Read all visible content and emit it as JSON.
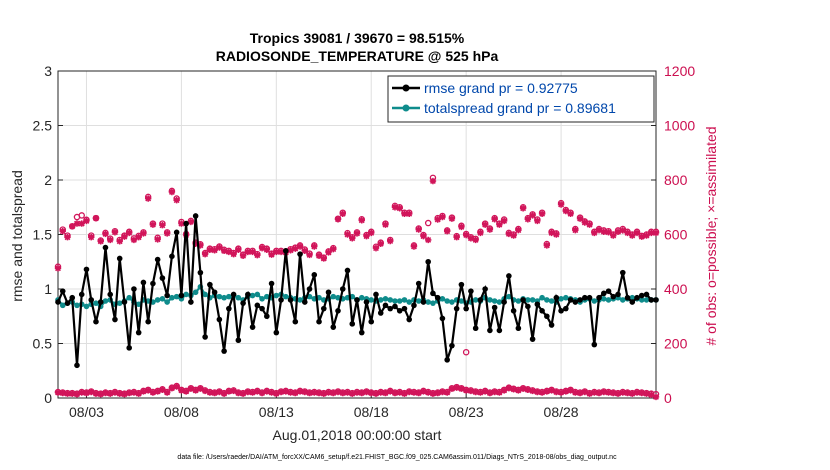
{
  "chart_data": {
    "type": "line",
    "title_line1": "Tropics 39081 / 39670 = 98.515%",
    "title_line2": "RADIOSONDE_TEMPERATURE @ 525 hPa",
    "xlabel": "Aug.01,2018 00:00:00 start",
    "ylabel_left": "rmse and totalspread",
    "ylabel_right": "# of obs: o=possible; ×=assimilated",
    "xlim": [
      1.5,
      33.0
    ],
    "ylim_left": [
      0,
      3
    ],
    "ylim_right": [
      0,
      1200
    ],
    "grid": true,
    "legend_position": "top-right",
    "xticks": [
      {
        "x": 3,
        "label": "08/03"
      },
      {
        "x": 8,
        "label": "08/08"
      },
      {
        "x": 13,
        "label": "08/13"
      },
      {
        "x": 18,
        "label": "08/18"
      },
      {
        "x": 23,
        "label": "08/23"
      },
      {
        "x": 28,
        "label": "08/28"
      }
    ],
    "yticks_left": [
      "0",
      "0.5",
      "1",
      "1.5",
      "2",
      "2.5",
      "3"
    ],
    "yticks_right": [
      "0",
      "200",
      "400",
      "600",
      "800",
      "1000",
      "1200"
    ],
    "colors": {
      "rmse": "#000000",
      "spread": "#0f8c8c",
      "obs": "#d1155a",
      "legend_text": "#0047ab"
    },
    "x": [
      1.5,
      1.75,
      2.0,
      2.25,
      2.5,
      2.75,
      3.0,
      3.25,
      3.5,
      3.75,
      4.0,
      4.25,
      4.5,
      4.75,
      5.0,
      5.25,
      5.5,
      5.75,
      6.0,
      6.25,
      6.5,
      6.75,
      7.0,
      7.25,
      7.5,
      7.75,
      8.0,
      8.25,
      8.5,
      8.75,
      9.0,
      9.25,
      9.5,
      9.75,
      10.0,
      10.25,
      10.5,
      10.75,
      11.0,
      11.25,
      11.5,
      11.75,
      12.0,
      12.25,
      12.5,
      12.75,
      13.0,
      13.25,
      13.5,
      13.75,
      14.0,
      14.25,
      14.5,
      14.75,
      15.0,
      15.25,
      15.5,
      15.75,
      16.0,
      16.25,
      16.5,
      16.75,
      17.0,
      17.25,
      17.5,
      17.75,
      18.0,
      18.25,
      18.5,
      18.75,
      19.0,
      19.25,
      19.5,
      19.75,
      20.0,
      20.25,
      20.5,
      20.75,
      21.0,
      21.25,
      21.5,
      21.75,
      22.0,
      22.25,
      22.5,
      22.75,
      23.0,
      23.25,
      23.5,
      23.75,
      24.0,
      24.25,
      24.5,
      24.75,
      25.0,
      25.25,
      25.5,
      25.75,
      26.0,
      26.25,
      26.5,
      26.75,
      27.0,
      27.25,
      27.5,
      27.75,
      28.0,
      28.25,
      28.5,
      28.75,
      29.0,
      29.25,
      29.5,
      29.75,
      30.0,
      30.25,
      30.5,
      30.75,
      31.0,
      31.25,
      31.5,
      31.75,
      32.0,
      32.25,
      32.5,
      32.75,
      33.0
    ],
    "series": [
      {
        "name": "rmse",
        "legend_label": "rmse grand pr = 0.92775",
        "axis": "left",
        "values": [
          0.88,
          0.98,
          0.87,
          0.92,
          0.3,
          0.95,
          1.18,
          0.9,
          0.7,
          0.88,
          1.38,
          0.95,
          0.72,
          1.28,
          0.88,
          0.46,
          1.0,
          0.6,
          1.06,
          0.7,
          1.05,
          1.27,
          1.1,
          0.94,
          1.3,
          1.52,
          0.94,
          1.6,
          0.88,
          1.67,
          1.15,
          0.56,
          1.04,
          0.97,
          0.72,
          0.43,
          0.82,
          0.95,
          0.53,
          0.87,
          0.95,
          0.65,
          0.85,
          0.82,
          0.75,
          1.05,
          0.6,
          0.9,
          1.35,
          0.9,
          0.7,
          1.32,
          0.88,
          1.0,
          1.13,
          0.7,
          0.82,
          0.97,
          0.65,
          0.8,
          1.0,
          1.17,
          0.68,
          0.9,
          0.6,
          0.88,
          0.7,
          0.95,
          0.78,
          0.85,
          0.82,
          0.84,
          0.8,
          0.82,
          0.72,
          0.85,
          1.05,
          0.88,
          1.25,
          0.96,
          0.92,
          0.73,
          0.35,
          0.48,
          0.82,
          1.04,
          0.82,
          0.98,
          0.64,
          0.9,
          1.0,
          0.62,
          0.83,
          0.62,
          0.88,
          1.12,
          0.8,
          0.64,
          0.9,
          0.84,
          0.54,
          0.86,
          0.8,
          0.75,
          0.67,
          0.92,
          0.8,
          0.82,
          0.9,
          0.88,
          0.9,
          0.92,
          0.92,
          0.49,
          0.92,
          0.96,
          0.98,
          0.93,
          0.95,
          1.15,
          0.92,
          0.88,
          0.92,
          0.94,
          0.95,
          0.9,
          0.9
        ]
      },
      {
        "name": "totalspread",
        "legend_label": "totalspread grand pr = 0.89681",
        "axis": "left",
        "values": [
          0.9,
          0.85,
          0.87,
          0.88,
          0.85,
          0.86,
          0.84,
          0.86,
          0.87,
          0.84,
          0.89,
          0.9,
          0.86,
          0.87,
          0.89,
          0.92,
          0.88,
          0.86,
          0.9,
          0.89,
          0.88,
          0.9,
          0.91,
          0.88,
          0.92,
          0.93,
          0.91,
          0.95,
          0.94,
          0.97,
          1.02,
          0.95,
          0.92,
          0.94,
          0.93,
          0.92,
          0.93,
          0.94,
          0.92,
          0.9,
          0.93,
          0.94,
          0.95,
          0.91,
          0.93,
          0.92,
          0.94,
          0.95,
          0.93,
          0.92,
          0.91,
          0.9,
          0.92,
          0.93,
          0.91,
          0.92,
          0.9,
          0.91,
          0.93,
          0.92,
          0.91,
          0.92,
          0.93,
          0.9,
          0.92,
          0.91,
          0.9,
          0.89,
          0.9,
          0.91,
          0.9,
          0.89,
          0.89,
          0.9,
          0.88,
          0.9,
          0.89,
          0.9,
          0.88,
          0.87,
          0.89,
          0.91,
          0.89,
          0.88,
          0.9,
          0.89,
          0.87,
          0.88,
          0.9,
          0.89,
          0.92,
          0.9,
          0.89,
          0.88,
          0.91,
          0.93,
          0.9,
          0.89,
          0.91,
          0.9,
          0.9,
          0.89,
          0.92,
          0.9,
          0.89,
          0.88,
          0.91,
          0.92,
          0.91,
          0.9,
          0.88,
          0.9,
          0.91,
          0.89,
          0.9,
          0.91,
          0.9,
          0.91,
          0.92,
          0.9,
          0.91,
          0.92,
          0.91,
          0.9,
          0.9,
          0.9,
          0.9
        ]
      },
      {
        "name": "obs_possible",
        "axis": "right",
        "marker": "circle",
        "values": [
          482,
          618,
          596,
          630,
          664,
          670,
          654,
          596,
          660,
          578,
          606,
          585,
          612,
          580,
          596,
          610,
          586,
          595,
          608,
          738,
          640,
          588,
          640,
          608,
          760,
          732,
          646,
          602,
          650,
          570,
          564,
          532,
          548,
          546,
          556,
          544,
          540,
          532,
          548,
          526,
          540,
          540,
          528,
          554,
          548,
          530,
          540,
          540,
          538,
          546,
          552,
          560,
          545,
          530,
          560,
          526,
          515,
          538,
          550,
          658,
          680,
          605,
          590,
          608,
          656,
          598,
          610,
          555,
          570,
          640,
          580,
          705,
          700,
          680,
          680,
          560,
          622,
          598,
          642,
          808,
          660,
          668,
          615,
          662,
          594,
          632,
          602,
          590,
          584,
          610,
          640,
          622,
          660,
          640,
          655,
          606,
          600,
          620,
          700,
          660,
          674,
          655,
          680,
          565,
          610,
          604,
          715,
          690,
          680,
          620,
          662,
          648,
          640,
          610,
          620,
          615,
          612,
          600,
          615,
          620,
          610,
          600,
          610,
          595,
          600,
          610,
          610
        ]
      },
      {
        "name": "obs_assimilated",
        "axis": "right",
        "marker": "cross",
        "values": [
          476,
          612,
          590,
          630,
          640,
          640,
          650,
          590,
          660,
          575,
          602,
          580,
          608,
          575,
          592,
          606,
          580,
          590,
          604,
          732,
          636,
          582,
          634,
          604,
          756,
          726,
          640,
          598,
          646,
          566,
          560,
          528,
          544,
          542,
          552,
          540,
          536,
          528,
          544,
          522,
          536,
          536,
          524,
          550,
          544,
          526,
          536,
          536,
          534,
          542,
          548,
          556,
          540,
          525,
          556,
          522,
          512,
          534,
          546,
          656,
          676,
          600,
          586,
          604,
          652,
          594,
          606,
          550,
          566,
          636,
          576,
          700,
          696,
          676,
          676,
          556,
          618,
          594,
          580,
          796,
          655,
          664,
          612,
          658,
          590,
          628,
          598,
          586,
          580,
          606,
          636,
          618,
          656,
          636,
          650,
          602,
          596,
          616,
          696,
          656,
          670,
          650,
          676,
          560,
          606,
          600,
          710,
          686,
          676,
          616,
          658,
          644,
          636,
          606,
          616,
          610,
          608,
          596,
          610,
          615,
          606,
          596,
          606,
          592,
          596,
          606,
          606
        ]
      },
      {
        "name": "obs_low_possible",
        "axis": "right",
        "marker": "circle",
        "values": [
          22,
          20,
          18,
          18,
          16,
          22,
          20,
          24,
          18,
          16,
          20,
          18,
          22,
          18,
          16,
          20,
          22,
          18,
          26,
          30,
          22,
          26,
          32,
          22,
          38,
          44,
          30,
          26,
          36,
          30,
          36,
          28,
          22,
          20,
          24,
          18,
          26,
          28,
          20,
          18,
          24,
          22,
          26,
          20,
          26,
          22,
          18,
          24,
          26,
          22,
          20,
          26,
          24,
          20,
          22,
          20,
          18,
          22,
          20,
          24,
          20,
          22,
          18,
          22,
          20,
          24,
          20,
          18,
          22,
          20,
          26,
          20,
          22,
          18,
          24,
          22,
          20,
          26,
          22,
          18,
          20,
          24,
          22,
          36,
          40,
          36,
          30,
          28,
          24,
          22,
          26,
          20,
          24,
          22,
          30,
          38,
          34,
          30,
          36,
          32,
          28,
          24,
          22,
          26,
          30,
          24,
          22,
          26,
          30,
          22,
          20,
          24,
          18,
          22,
          20,
          24,
          22,
          20,
          18,
          22,
          20,
          18,
          22,
          20,
          18,
          16,
          14
        ]
      },
      {
        "name": "obs_low_assimilated",
        "axis": "right",
        "marker": "cross",
        "values": [
          20,
          18,
          16,
          16,
          14,
          20,
          18,
          22,
          16,
          14,
          18,
          16,
          20,
          16,
          14,
          18,
          20,
          16,
          24,
          28,
          20,
          24,
          30,
          20,
          36,
          42,
          28,
          24,
          34,
          28,
          34,
          26,
          20,
          18,
          22,
          16,
          24,
          26,
          18,
          16,
          22,
          20,
          24,
          18,
          24,
          20,
          16,
          22,
          24,
          20,
          18,
          24,
          22,
          18,
          20,
          18,
          16,
          20,
          18,
          22,
          18,
          20,
          16,
          20,
          18,
          22,
          18,
          16,
          20,
          18,
          24,
          18,
          20,
          16,
          22,
          20,
          18,
          24,
          20,
          16,
          18,
          22,
          20,
          34,
          38,
          34,
          28,
          26,
          22,
          20,
          24,
          18,
          22,
          20,
          28,
          36,
          32,
          28,
          34,
          30,
          26,
          22,
          20,
          24,
          28,
          22,
          20,
          24,
          28,
          20,
          18,
          22,
          16,
          20,
          18,
          22,
          20,
          18,
          16,
          20,
          18,
          16,
          20,
          18,
          16,
          12,
          4
        ]
      }
    ],
    "extra_points": [
      {
        "series": "obs_possible",
        "x": 23.0,
        "y": 168
      }
    ],
    "footnote": "data file: /Users/raeder/DAI/ATM_forcXX/CAM6_setup/f.e21.FHIST_BGC.f09_025.CAM6assim.011/Diags_NTrS_2018-08/obs_diag_output.nc"
  }
}
